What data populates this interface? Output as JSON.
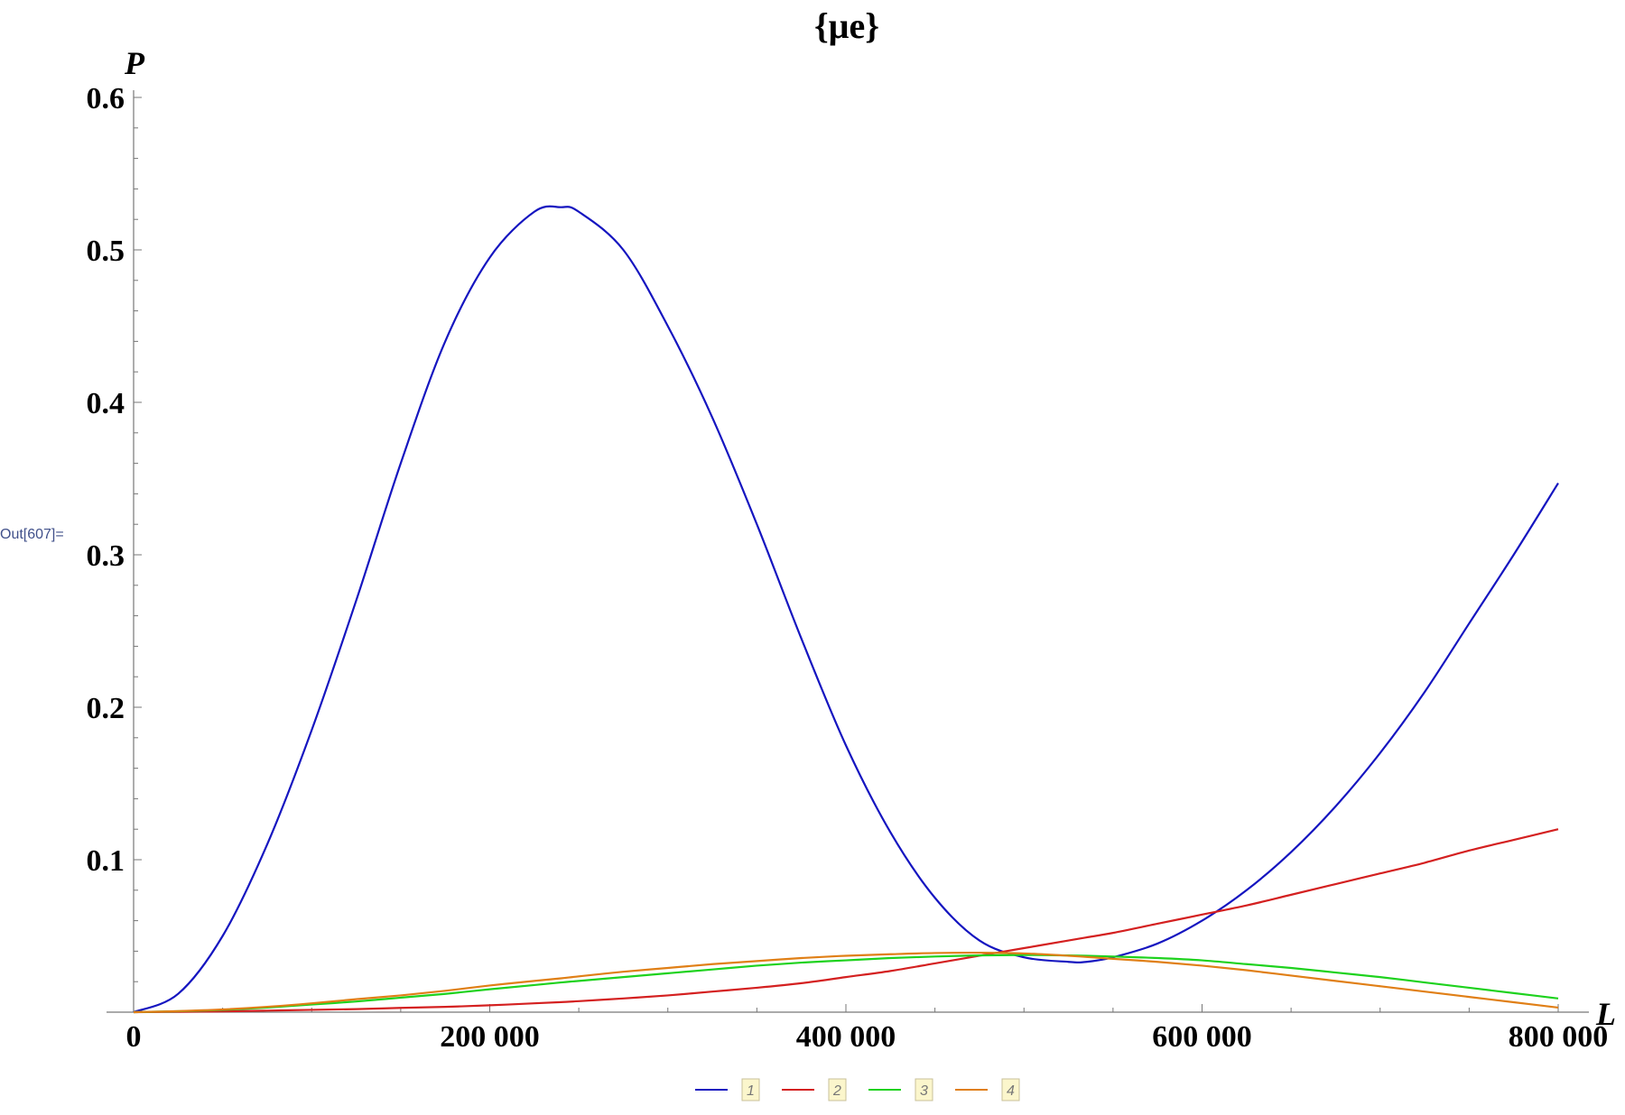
{
  "notebook": {
    "out_label": "Out[607]="
  },
  "chart_data": {
    "type": "line",
    "title": "{μe}",
    "xlabel": "L",
    "ylabel": "P",
    "xlim": [
      0,
      800000
    ],
    "ylim": [
      0,
      0.6
    ],
    "grid": false,
    "legend_position": "bottom-center",
    "x_ticks": [
      {
        "value": 0,
        "label": "0"
      },
      {
        "value": 200000,
        "label": "200 000"
      },
      {
        "value": 400000,
        "label": "400 000"
      },
      {
        "value": 600000,
        "label": "600 000"
      },
      {
        "value": 800000,
        "label": "800 000"
      }
    ],
    "y_ticks": [
      {
        "value": 0.1,
        "label": "0.1"
      },
      {
        "value": 0.2,
        "label": "0.2"
      },
      {
        "value": 0.3,
        "label": "0.3"
      },
      {
        "value": 0.4,
        "label": "0.4"
      },
      {
        "value": 0.5,
        "label": "0.5"
      },
      {
        "value": 0.6,
        "label": "0.6"
      }
    ],
    "x": [
      0,
      25000,
      50000,
      75000,
      100000,
      125000,
      150000,
      175000,
      200000,
      225000,
      240000,
      250000,
      275000,
      300000,
      325000,
      350000,
      375000,
      400000,
      425000,
      450000,
      475000,
      500000,
      525000,
      535000,
      550000,
      575000,
      600000,
      625000,
      650000,
      675000,
      700000,
      725000,
      750000,
      775000,
      800000
    ],
    "series": [
      {
        "name": "1",
        "color": "#1515c0",
        "values": [
          0.0,
          0.012,
          0.05,
          0.11,
          0.185,
          0.27,
          0.36,
          0.44,
          0.495,
          0.525,
          0.528,
          0.525,
          0.5,
          0.45,
          0.39,
          0.32,
          0.245,
          0.175,
          0.118,
          0.075,
          0.047,
          0.036,
          0.033,
          0.033,
          0.036,
          0.045,
          0.06,
          0.08,
          0.105,
          0.135,
          0.17,
          0.21,
          0.255,
          0.3,
          0.347
        ]
      },
      {
        "name": "2",
        "color": "#d42020",
        "values": [
          0.0,
          0.0002,
          0.0005,
          0.001,
          0.0015,
          0.002,
          0.0028,
          0.0035,
          0.0045,
          0.0058,
          0.0066,
          0.0072,
          0.009,
          0.011,
          0.0135,
          0.016,
          0.019,
          0.023,
          0.027,
          0.032,
          0.037,
          0.042,
          0.047,
          0.049,
          0.052,
          0.058,
          0.064,
          0.07,
          0.077,
          0.084,
          0.091,
          0.098,
          0.106,
          0.113,
          0.12
        ]
      },
      {
        "name": "3",
        "color": "#1ed21e",
        "values": [
          0.0,
          0.0006,
          0.0015,
          0.003,
          0.005,
          0.007,
          0.0095,
          0.012,
          0.015,
          0.0178,
          0.0195,
          0.0205,
          0.023,
          0.0255,
          0.028,
          0.0305,
          0.0325,
          0.034,
          0.0355,
          0.0365,
          0.0372,
          0.0375,
          0.0372,
          0.037,
          0.0365,
          0.0355,
          0.034,
          0.0315,
          0.029,
          0.026,
          0.023,
          0.0195,
          0.016,
          0.0125,
          0.009
        ]
      },
      {
        "name": "4",
        "color": "#e07f16",
        "values": [
          0.0,
          0.0007,
          0.0018,
          0.0035,
          0.0058,
          0.0085,
          0.011,
          0.014,
          0.0175,
          0.0205,
          0.0222,
          0.0235,
          0.0265,
          0.029,
          0.0315,
          0.0335,
          0.0355,
          0.037,
          0.038,
          0.0388,
          0.039,
          0.0385,
          0.037,
          0.0362,
          0.035,
          0.033,
          0.0305,
          0.0275,
          0.024,
          0.0205,
          0.017,
          0.0135,
          0.01,
          0.0065,
          0.003
        ]
      }
    ]
  }
}
